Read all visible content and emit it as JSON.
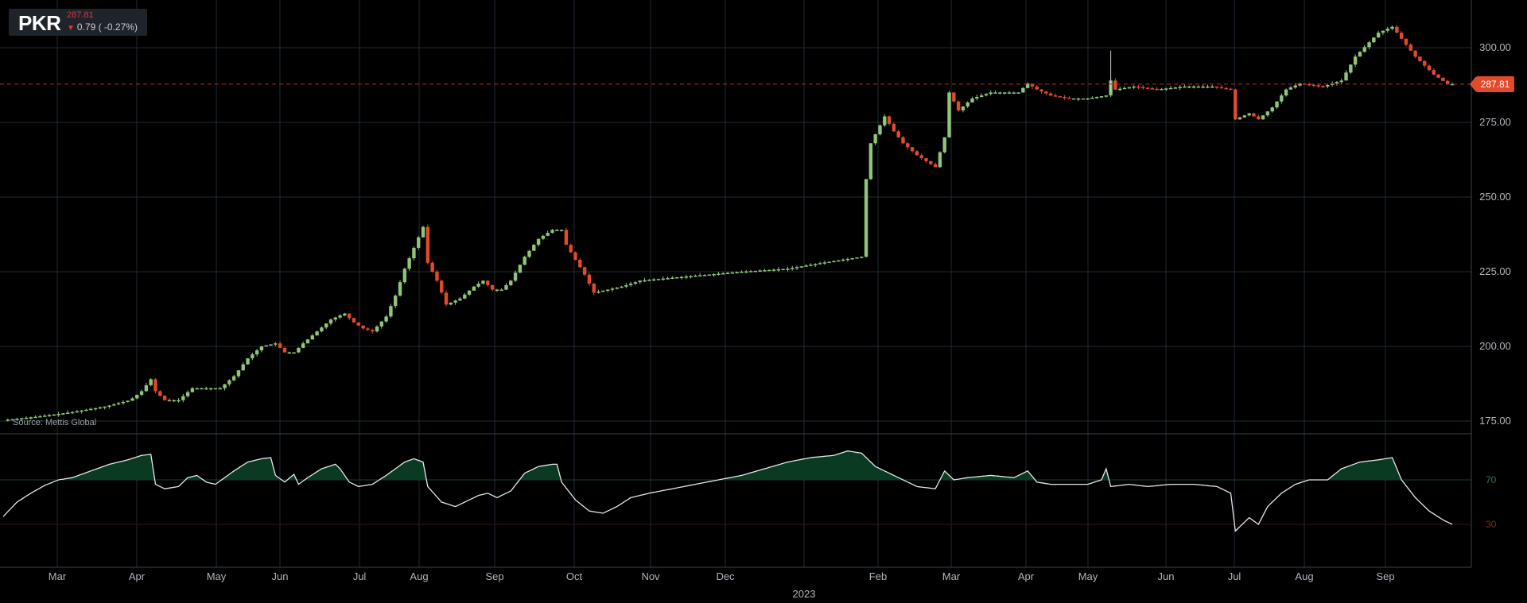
{
  "ticker": {
    "symbol": "PKR",
    "price": "287.81",
    "change": "0.79 ( -0.27%)",
    "arrow_icon": "down-triangle-icon"
  },
  "source": "Source: Mettis Global",
  "last_price_label": "287.81",
  "colors": {
    "up": "#8fc47a",
    "down": "#e24a2b",
    "grid": "#1e2a33",
    "rsi_line": "#e6e6e6",
    "rsi_fill": "#0b3a22",
    "last_price_line": "#b03020"
  },
  "chart_data": [
    {
      "type": "candlestick",
      "title": "",
      "y_ticks": [
        "175.00",
        "200.00",
        "225.00",
        "250.00",
        "275.00",
        "300.00"
      ],
      "y_range": [
        172,
        316
      ],
      "x_ticks": [
        "Mar",
        "Apr",
        "May",
        "Jun",
        "Jul",
        "Aug",
        "Sep",
        "Oct",
        "Nov",
        "Dec",
        "2023",
        "Feb",
        "Mar",
        "Apr",
        "May",
        "Jun",
        "Jul",
        "Aug",
        "Sep"
      ],
      "last_price": 287.81,
      "series": [
        {
          "name": "",
          "close_points": [
            [
              0,
              175.3
            ],
            [
              15,
              176.5
            ],
            [
              30,
              178
            ],
            [
              45,
              180
            ],
            [
              55,
              182
            ],
            [
              60,
              185
            ],
            [
              64,
              189
            ],
            [
              66,
              185
            ],
            [
              70,
              182
            ],
            [
              76,
              182
            ],
            [
              82,
              186
            ],
            [
              88,
              186
            ],
            [
              94,
              186
            ],
            [
              100,
              190
            ],
            [
              106,
              196
            ],
            [
              112,
              200
            ],
            [
              118,
              201
            ],
            [
              122,
              198
            ],
            [
              126,
              198
            ],
            [
              130,
              201
            ],
            [
              136,
              205
            ],
            [
              142,
              209
            ],
            [
              148,
              211
            ],
            [
              152,
              208
            ],
            [
              156,
              206
            ],
            [
              160,
              205
            ],
            [
              166,
              210
            ],
            [
              170,
              217
            ],
            [
              174,
              226
            ],
            [
              178,
              233
            ],
            [
              182,
              240
            ],
            [
              184,
              228
            ],
            [
              188,
              222
            ],
            [
              192,
              214
            ],
            [
              198,
              216
            ],
            [
              204,
              220
            ],
            [
              208,
              222
            ],
            [
              212,
              219
            ],
            [
              216,
              219
            ],
            [
              220,
              222
            ],
            [
              226,
              230
            ],
            [
              232,
              236
            ],
            [
              238,
              239
            ],
            [
              242,
              239
            ],
            [
              244,
              234
            ],
            [
              248,
              229
            ],
            [
              252,
              224
            ],
            [
              256,
              218
            ],
            [
              262,
              219
            ],
            [
              268,
              220
            ],
            [
              276,
              222
            ],
            [
              290,
              223
            ],
            [
              305,
              224
            ],
            [
              320,
              225
            ],
            [
              340,
              226
            ],
            [
              355,
              228
            ],
            [
              372,
              230
            ],
            [
              374,
              256
            ],
            [
              376,
              268
            ],
            [
              382,
              277
            ],
            [
              386,
              272
            ],
            [
              390,
              268
            ],
            [
              396,
              264
            ],
            [
              404,
              260
            ],
            [
              408,
              270
            ],
            [
              410,
              285
            ],
            [
              414,
              279
            ],
            [
              420,
              283
            ],
            [
              428,
              285
            ],
            [
              440,
              285
            ],
            [
              444,
              288
            ],
            [
              448,
              286
            ],
            [
              454,
              284
            ],
            [
              462,
              283
            ],
            [
              470,
              283
            ],
            [
              478,
              284
            ],
            [
              480,
              289
            ],
            [
              482,
              286
            ],
            [
              490,
              287
            ],
            [
              500,
              286
            ],
            [
              512,
              287
            ],
            [
              524,
              287
            ],
            [
              532,
              286
            ],
            [
              534,
              276
            ],
            [
              540,
              278
            ],
            [
              544,
              276
            ],
            [
              550,
              280
            ],
            [
              556,
              286
            ],
            [
              562,
              288
            ],
            [
              572,
              287
            ],
            [
              580,
              289
            ],
            [
              586,
              297
            ],
            [
              596,
              305
            ],
            [
              602,
              307
            ],
            [
              606,
              303
            ],
            [
              612,
              297
            ],
            [
              620,
              291
            ],
            [
              626,
              287.81
            ]
          ]
        }
      ]
    },
    {
      "type": "line",
      "title": "",
      "indicator": "RSI",
      "y_ticks": [
        "70",
        "30"
      ],
      "y_range": [
        0,
        100
      ],
      "overbought": 70,
      "oversold": 30,
      "series": [
        {
          "name": "",
          "points": [
            [
              0,
              37
            ],
            [
              6,
              50
            ],
            [
              12,
              58
            ],
            [
              18,
              65
            ],
            [
              24,
              70
            ],
            [
              30,
              72
            ],
            [
              38,
              78
            ],
            [
              46,
              84
            ],
            [
              54,
              88
            ],
            [
              60,
              92
            ],
            [
              64,
              93
            ],
            [
              66,
              66
            ],
            [
              70,
              62
            ],
            [
              76,
              64
            ],
            [
              80,
              72
            ],
            [
              84,
              74
            ],
            [
              88,
              68
            ],
            [
              92,
              66
            ],
            [
              96,
              72
            ],
            [
              100,
              78
            ],
            [
              106,
              86
            ],
            [
              112,
              89
            ],
            [
              116,
              90
            ],
            [
              118,
              74
            ],
            [
              122,
              68
            ],
            [
              126,
              75
            ],
            [
              128,
              66
            ],
            [
              132,
              72
            ],
            [
              138,
              80
            ],
            [
              144,
              84
            ],
            [
              146,
              80
            ],
            [
              150,
              68
            ],
            [
              154,
              64
            ],
            [
              160,
              66
            ],
            [
              166,
              74
            ],
            [
              170,
              80
            ],
            [
              174,
              86
            ],
            [
              178,
              89
            ],
            [
              182,
              86
            ],
            [
              184,
              64
            ],
            [
              190,
              50
            ],
            [
              196,
              46
            ],
            [
              200,
              50
            ],
            [
              206,
              56
            ],
            [
              210,
              58
            ],
            [
              214,
              54
            ],
            [
              220,
              60
            ],
            [
              226,
              76
            ],
            [
              232,
              82
            ],
            [
              238,
              84
            ],
            [
              240,
              84
            ],
            [
              242,
              68
            ],
            [
              248,
              52
            ],
            [
              254,
              42
            ],
            [
              260,
              40
            ],
            [
              266,
              46
            ],
            [
              272,
              54
            ],
            [
              280,
              58
            ],
            [
              290,
              62
            ],
            [
              300,
              66
            ],
            [
              310,
              70
            ],
            [
              320,
              74
            ],
            [
              330,
              80
            ],
            [
              340,
              86
            ],
            [
              350,
              90
            ],
            [
              360,
              92
            ],
            [
              366,
              96
            ],
            [
              372,
              94
            ],
            [
              378,
              82
            ],
            [
              384,
              76
            ],
            [
              390,
              70
            ],
            [
              396,
              64
            ],
            [
              404,
              62
            ],
            [
              408,
              78
            ],
            [
              412,
              70
            ],
            [
              418,
              72
            ],
            [
              428,
              74
            ],
            [
              438,
              72
            ],
            [
              444,
              78
            ],
            [
              448,
              68
            ],
            [
              454,
              66
            ],
            [
              462,
              66
            ],
            [
              470,
              66
            ],
            [
              476,
              70
            ],
            [
              478,
              80
            ],
            [
              480,
              64
            ],
            [
              488,
              66
            ],
            [
              496,
              64
            ],
            [
              506,
              66
            ],
            [
              516,
              66
            ],
            [
              526,
              64
            ],
            [
              532,
              58
            ],
            [
              534,
              24
            ],
            [
              540,
              36
            ],
            [
              544,
              30
            ],
            [
              548,
              46
            ],
            [
              554,
              58
            ],
            [
              560,
              66
            ],
            [
              566,
              70
            ],
            [
              574,
              70
            ],
            [
              580,
              80
            ],
            [
              588,
              86
            ],
            [
              596,
              88
            ],
            [
              602,
              90
            ],
            [
              606,
              70
            ],
            [
              612,
              54
            ],
            [
              618,
              42
            ],
            [
              624,
              34
            ],
            [
              628,
              30
            ]
          ]
        }
      ]
    }
  ]
}
